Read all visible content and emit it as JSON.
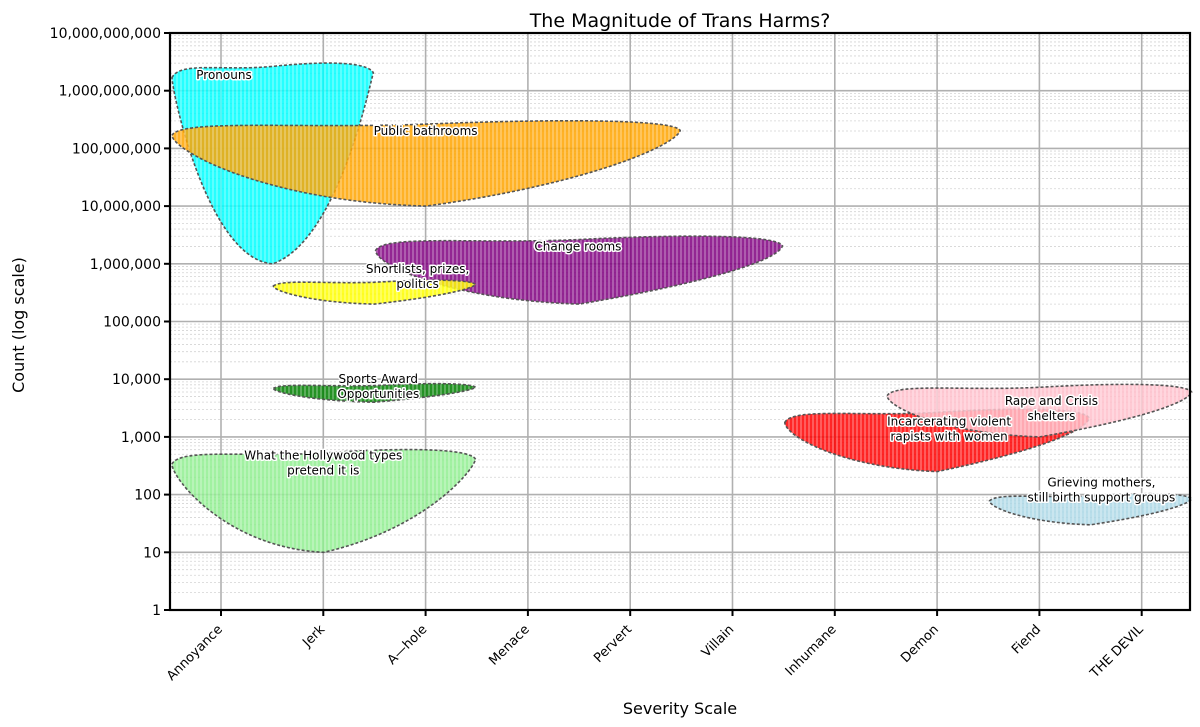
{
  "chart_data": {
    "type": "area",
    "title": "The Magnitude of Trans Harms?",
    "xlabel": "Severity Scale",
    "ylabel": "Count (log scale)",
    "x_categories": [
      "Annoyance",
      "Jerk",
      "A—hole",
      "Menace",
      "Pervert",
      "Villain",
      "Inhumane",
      "Demon",
      "Fiend",
      "THE DEVIL"
    ],
    "y_scale": "log",
    "ylim": [
      1,
      10000000000
    ],
    "y_ticks": [
      "1",
      "10",
      "100",
      "1,000",
      "10,000",
      "100,000",
      "1,000,000",
      "10,000,000",
      "100,000,000",
      "1,000,000,000",
      "10,000,000,000"
    ],
    "grid": true,
    "series": [
      {
        "name": "Pronouns",
        "color": "#00ffff",
        "x_range": [
          "Annoyance",
          "Jerk"
        ],
        "y_top": 3000000000,
        "y_bottom": 1000000,
        "label_lines": [
          "Pronouns"
        ]
      },
      {
        "name": "Public bathrooms",
        "color": "#ffa500",
        "x_range": [
          "Annoyance",
          "Pervert"
        ],
        "y_top": 300000000,
        "y_bottom": 10000000,
        "label_lines": [
          "Public bathrooms"
        ]
      },
      {
        "name": "Change rooms",
        "color": "#800080",
        "x_range": [
          "A—hole",
          "Villain"
        ],
        "y_top": 3000000,
        "y_bottom": 200000,
        "label_lines": [
          "Change rooms"
        ]
      },
      {
        "name": "Shortlists, prizes, politics",
        "color": "#ffff00",
        "x_range": [
          "Jerk",
          "A—hole"
        ],
        "y_top": 500000,
        "y_bottom": 200000,
        "label_lines": [
          "Shortlists, prizes,",
          "politics"
        ]
      },
      {
        "name": "Sports Award Opportunities",
        "color": "#008000",
        "x_range": [
          "Jerk",
          "A—hole"
        ],
        "y_top": 8000,
        "y_bottom": 4000,
        "label_lines": [
          "Sports Award",
          "Opportunities"
        ]
      },
      {
        "name": "What the Hollywood types pretend it is",
        "color": "#90ee90",
        "x_range": [
          "Annoyance",
          "A—hole"
        ],
        "y_top": 600,
        "y_bottom": 10,
        "label_lines": [
          "What the Hollywood types",
          "pretend it is"
        ]
      },
      {
        "name": "Incarcerating violent rapists with women",
        "color": "#ff0000",
        "x_range": [
          "Inhumane",
          "Fiend"
        ],
        "y_top": 3000,
        "y_bottom": 250,
        "label_lines": [
          "Incarcerating violent",
          "rapists with women"
        ]
      },
      {
        "name": "Rape and Crisis shelters",
        "color": "#ffc0cb",
        "x_range": [
          "Demon",
          "THE DEVIL"
        ],
        "y_top": 8000,
        "y_bottom": 1000,
        "label_lines": [
          "Rape and Crisis",
          "shelters"
        ]
      },
      {
        "name": "Grieving mothers, still birth support groups",
        "color": "#add8e6",
        "x_range": [
          "Fiend",
          "THE DEVIL"
        ],
        "y_top": 100,
        "y_bottom": 30,
        "label_lines": [
          "Grieving mothers,",
          "still birth support groups"
        ]
      }
    ]
  }
}
